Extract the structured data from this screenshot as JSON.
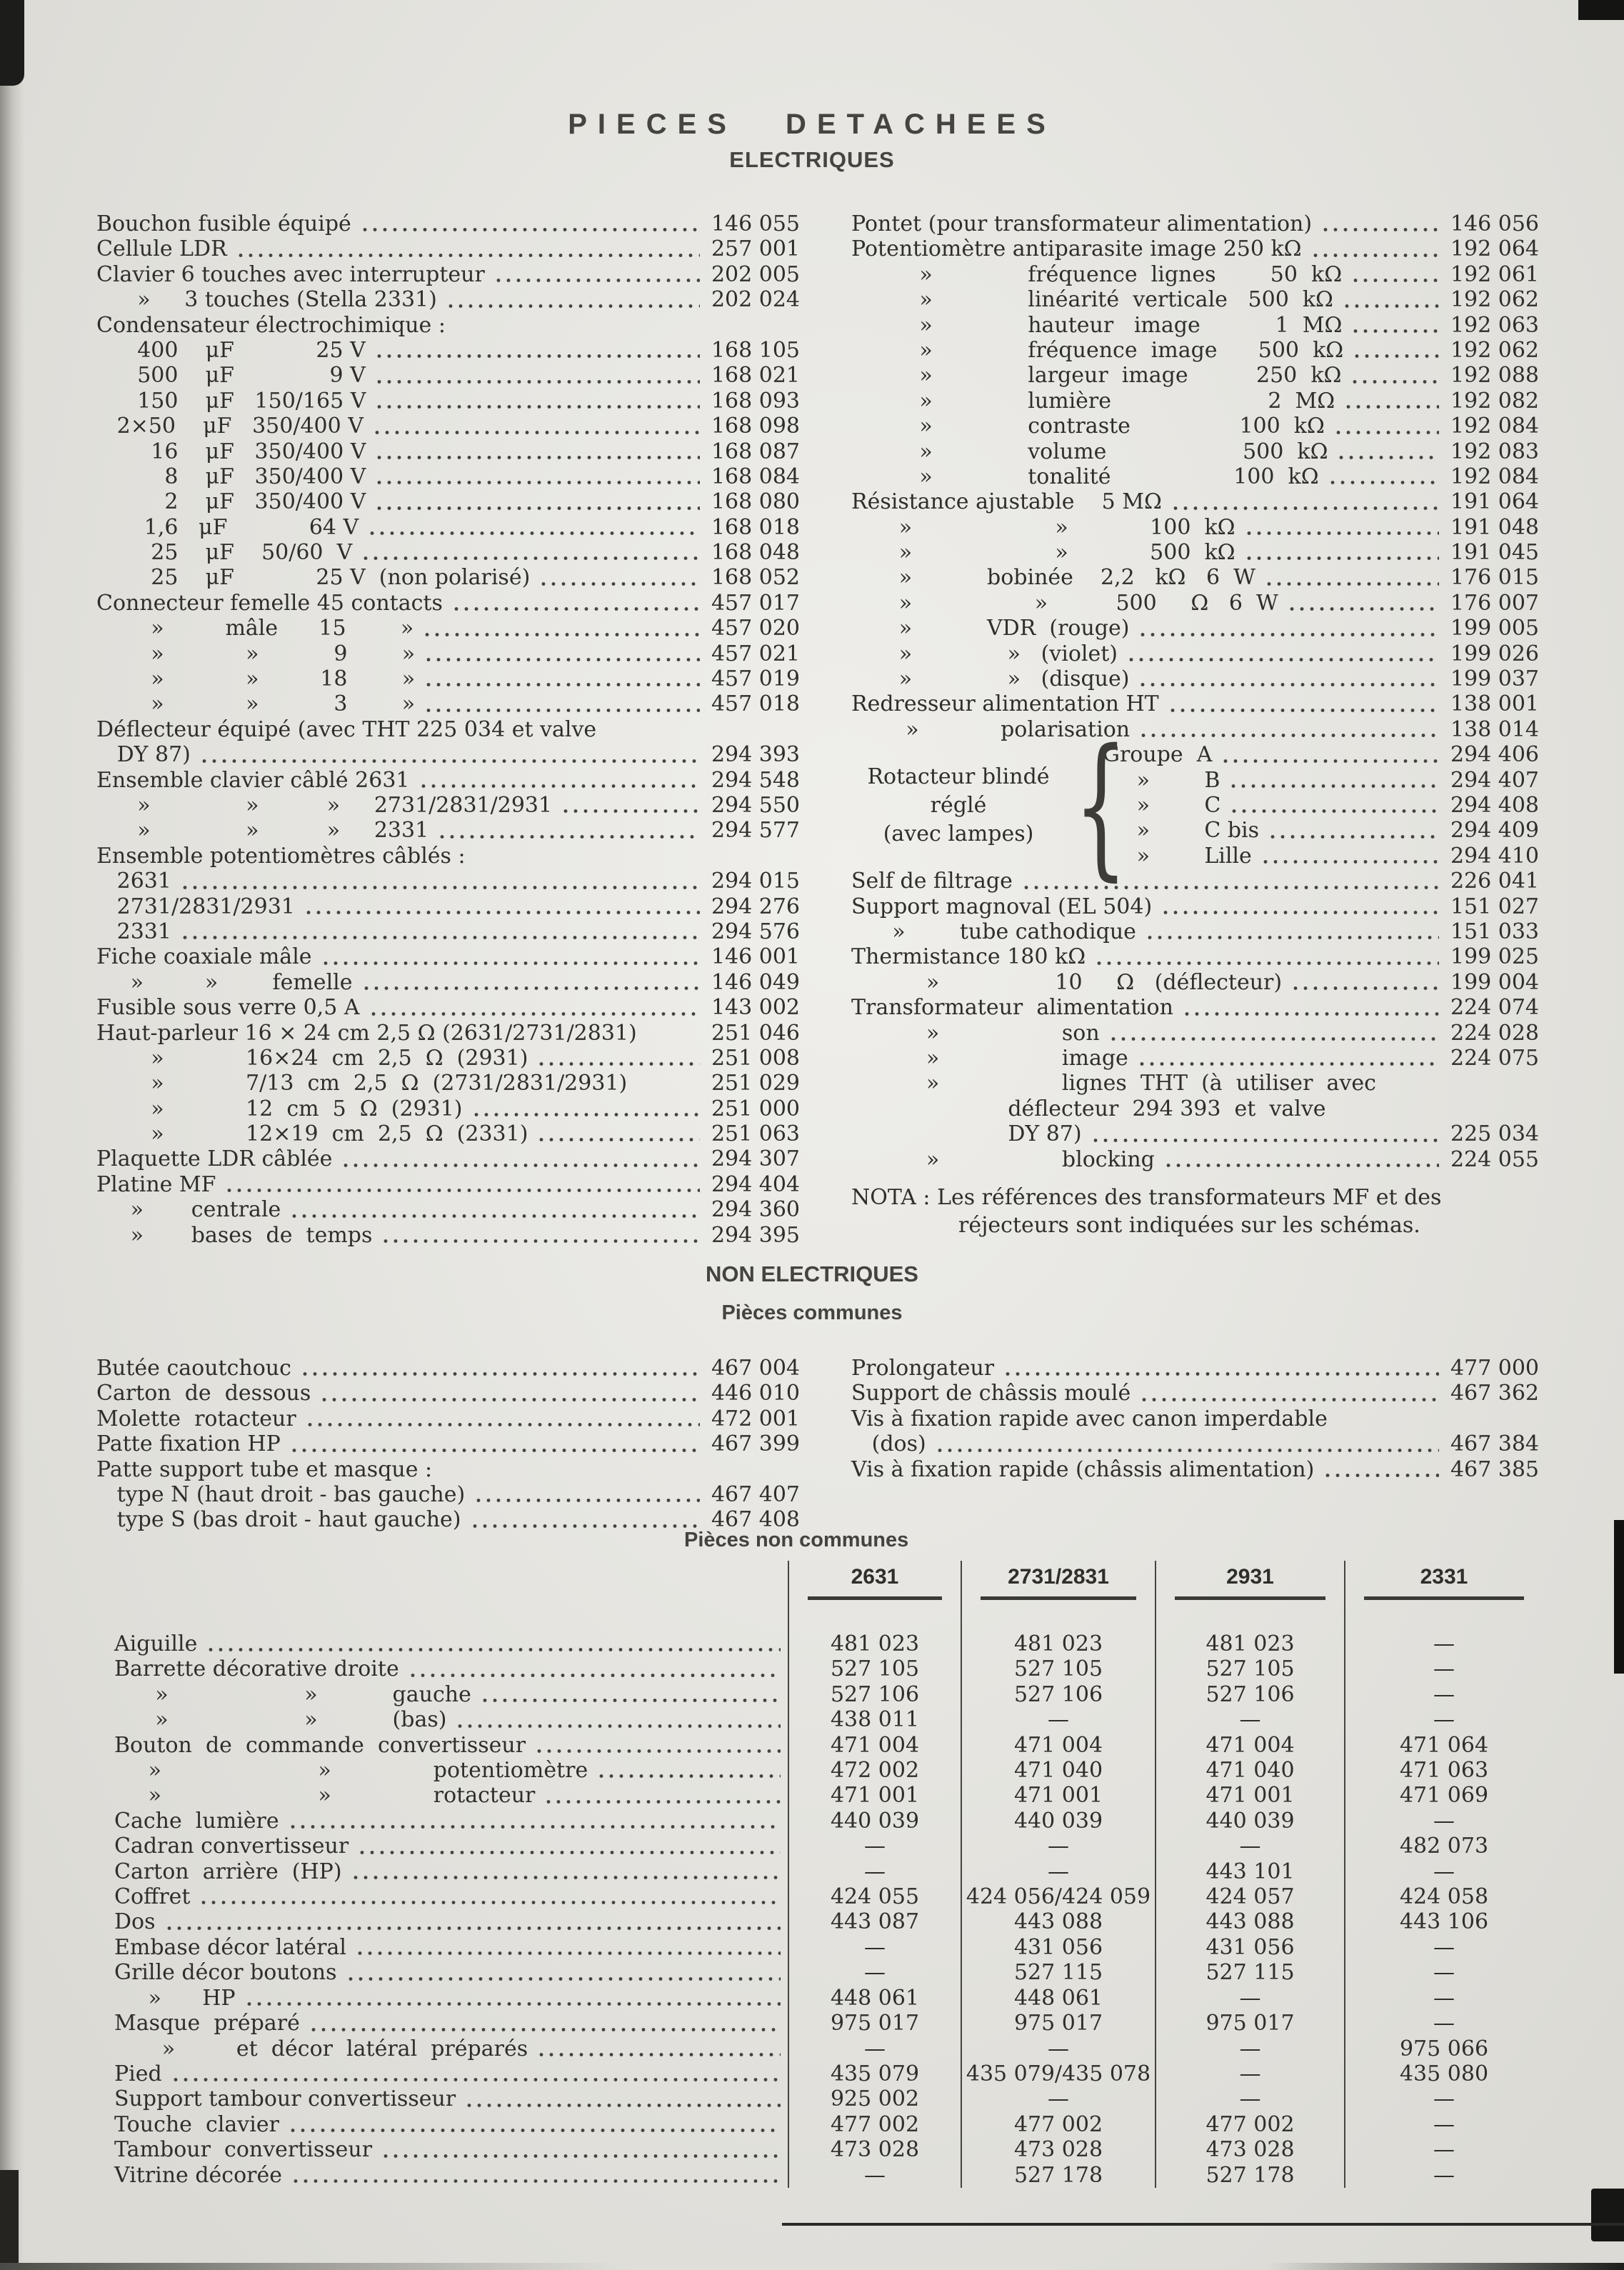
{
  "page": {
    "title": "PIECES DETACHEES",
    "subtitle": "ELECTRIQUES",
    "non_electriques_heading": "NON ELECTRIQUES",
    "pieces_communes_heading": "Pièces communes",
    "pieces_non_communes_heading": "Pièces non communes",
    "nota_label": "NOTA :",
    "nota_text": " Les références des transformateurs MF et des réjecteurs sont indiquées sur les schémas."
  },
  "electriques_left": [
    {
      "t": "Bouchon fusible équipé",
      "r": "146 055"
    },
    {
      "t": "Cellule LDR",
      "r": "257 001"
    },
    {
      "t": "Clavier 6 touches avec interrupteur",
      "r": "202 005"
    },
    {
      "t": "      »     3 touches (Stella 2331)",
      "r": "202 024"
    },
    {
      "t": "Condensateur électrochimique :",
      "nl": 1
    },
    {
      "t": "      400    μF            25 V",
      "r": "168 105"
    },
    {
      "t": "      500    μF              9 V",
      "r": "168 021"
    },
    {
      "t": "      150    μF   150/165 V",
      "r": "168 093"
    },
    {
      "t": "   2×50    μF   350/400 V",
      "r": "168 098"
    },
    {
      "t": "        16    μF   350/400 V",
      "r": "168 087"
    },
    {
      "t": "          8    μF   350/400 V",
      "r": "168 084"
    },
    {
      "t": "          2    μF   350/400 V",
      "r": "168 080"
    },
    {
      "t": "       1,6   μF            64 V",
      "r": "168 018"
    },
    {
      "t": "        25    μF    50/60  V",
      "r": "168 048"
    },
    {
      "t": "        25    μF            25 V  (non polarisé)",
      "r": "168 052"
    },
    {
      "t": "Connecteur femelle 45 contacts",
      "r": "457 017"
    },
    {
      "t": "        »         mâle      15        »",
      "r": "457 020"
    },
    {
      "t": "        »            »           9        »",
      "r": "457 021"
    },
    {
      "t": "        »            »         18        »",
      "r": "457 019"
    },
    {
      "t": "        »            »           3        »",
      "r": "457 018"
    },
    {
      "t": "Déflecteur équipé (avec THT 225 034 et valve",
      "nl": 1
    },
    {
      "t": "   DY 87)",
      "r": "294 393"
    },
    {
      "t": "Ensemble clavier câblé 2631",
      "r": "294 548"
    },
    {
      "t": "      »              »          »     2731/2831/2931",
      "r": "294 550"
    },
    {
      "t": "      »              »          »     2331",
      "r": "294 577"
    },
    {
      "t": "Ensemble potentiomètres câblés :",
      "nl": 1
    },
    {
      "t": "   2631",
      "r": "294 015"
    },
    {
      "t": "   2731/2831/2931",
      "r": "294 276"
    },
    {
      "t": "   2331",
      "r": "294 576"
    },
    {
      "t": "Fiche coaxiale mâle",
      "r": "146 001"
    },
    {
      "t": "     »         »        femelle",
      "r": "146 049"
    },
    {
      "t": "Fusible sous verre 0,5 A",
      "r": "143 002"
    },
    {
      "t": "Haut-parleur 16 × 24 cm 2,5 Ω (2631/2731/2831)",
      "r": "251 046",
      "nl": 1
    },
    {
      "t": "        »            16×24  cm  2,5  Ω  (2931)",
      "r": "251 008"
    },
    {
      "t": "        »            7/13  cm  2,5  Ω  (2731/2831/2931)",
      "r": "251 029",
      "nl": 1
    },
    {
      "t": "        »            12  cm  5  Ω  (2931)",
      "r": "251 000"
    },
    {
      "t": "        »            12×19  cm  2,5  Ω  (2331)",
      "r": "251 063"
    },
    {
      "t": "Plaquette LDR câblée",
      "r": "294 307"
    },
    {
      "t": "Platine MF",
      "r": "294 404"
    },
    {
      "t": "     »       centrale",
      "r": "294 360"
    },
    {
      "t": "     »       bases  de  temps",
      "r": "294 395"
    }
  ],
  "electriques_right_top": [
    {
      "t": "Pontet (pour transformateur alimentation)",
      "r": "146 056"
    },
    {
      "t": "Potentiomètre antiparasite image 250 kΩ",
      "r": "192 064"
    },
    {
      "t": "          »              fréquence  lignes        50  kΩ",
      "r": "192 061"
    },
    {
      "t": "          »              linéarité  verticale   500  kΩ",
      "r": "192 062"
    },
    {
      "t": "          »              hauteur   image           1  MΩ",
      "r": "192 063"
    },
    {
      "t": "          »              fréquence  image      500  kΩ",
      "r": "192 062"
    },
    {
      "t": "          »              largeur  image          250  kΩ",
      "r": "192 088"
    },
    {
      "t": "          »              lumière                       2  MΩ",
      "r": "192 082"
    },
    {
      "t": "          »              contraste                100  kΩ",
      "r": "192 084"
    },
    {
      "t": "          »              volume                    500  kΩ",
      "r": "192 083"
    },
    {
      "t": "          »              tonalité                  100  kΩ",
      "r": "192 084"
    },
    {
      "t": "Résistance ajustable    5 MΩ",
      "r": "191 064"
    },
    {
      "t": "       »                     »            100  kΩ",
      "r": "191 048"
    },
    {
      "t": "       »                     »            500  kΩ",
      "r": "191 045"
    },
    {
      "t": "       »           bobinée    2,2   kΩ   6  W",
      "r": "176 015"
    },
    {
      "t": "       »                  »          500     Ω   6  W",
      "r": "176 007"
    },
    {
      "t": "       »           VDR  (rouge)",
      "r": "199 005"
    },
    {
      "t": "       »              »   (violet)",
      "r": "199 026"
    },
    {
      "t": "       »              »   (disque)",
      "r": "199 037"
    },
    {
      "t": "Redresseur alimentation HT",
      "r": "138 001"
    },
    {
      "t": "        »            polarisation",
      "r": "138 014"
    }
  ],
  "rotacteur": {
    "left_lines": [
      "Rotacteur blindé",
      "réglé",
      "(avec lampes)"
    ],
    "brace": "{",
    "rows": [
      {
        "t": "Groupe  A",
        "r": "294 406"
      },
      {
        "t": "     »        B",
        "r": "294 407"
      },
      {
        "t": "     »        C",
        "r": "294 408"
      },
      {
        "t": "     »        C bis",
        "r": "294 409"
      },
      {
        "t": "     »        Lille",
        "r": "294 410"
      }
    ]
  },
  "electriques_right_bottom": [
    {
      "t": "Self de filtrage",
      "r": "226 041"
    },
    {
      "t": "Support magnoval (EL 504)",
      "r": "151 027"
    },
    {
      "t": "      »        tube cathodique",
      "r": "151 033"
    },
    {
      "t": "Thermistance 180 kΩ",
      "r": "199 025"
    },
    {
      "t": "           »                 10     Ω   (déflecteur)",
      "r": "199 004"
    },
    {
      "t": "Transformateur  alimentation",
      "r": "224 074"
    },
    {
      "t": "           »                  son",
      "r": "224 028"
    },
    {
      "t": "           »                  image",
      "r": "224 075"
    },
    {
      "t": "           »                  lignes  THT  (à  utiliser  avec",
      "nl": 1
    },
    {
      "t": "                       déflecteur  294 393  et  valve",
      "nl": 1
    },
    {
      "t": "                       DY 87)",
      "r": "225 034"
    },
    {
      "t": "           »                  blocking",
      "r": "224 055"
    }
  ],
  "non_electriques_left": [
    {
      "t": "Butée caoutchouc",
      "r": "467 004"
    },
    {
      "t": "Carton  de  dessous",
      "r": "446 010"
    },
    {
      "t": "Molette  rotacteur",
      "r": "472 001"
    },
    {
      "t": "Patte fixation HP",
      "r": "467 399"
    },
    {
      "t": "Patte support tube et masque :",
      "nl": 1
    },
    {
      "t": "   type N (haut droit - bas gauche)",
      "r": "467 407"
    },
    {
      "t": "   type S (bas droit - haut gauche)",
      "r": "467 408"
    }
  ],
  "non_electriques_right": [
    {
      "t": "Prolongateur",
      "r": "477 000"
    },
    {
      "t": "Support de châssis moulé",
      "r": "467 362"
    },
    {
      "t": "Vis à fixation rapide avec canon imperdable",
      "nl": 1
    },
    {
      "t": "   (dos)",
      "r": "467 384"
    },
    {
      "t": "Vis à fixation rapide (châssis alimentation)",
      "r": "467 385"
    }
  ],
  "table": {
    "columns": [
      "2631",
      "2731/2831",
      "2931",
      "2331"
    ],
    "rows": [
      {
        "label": "Aiguille",
        "values": [
          "481 023",
          "481 023",
          "481 023",
          "—"
        ]
      },
      {
        "label": "Barrette décorative droite",
        "values": [
          "527 105",
          "527 105",
          "527 105",
          "—"
        ]
      },
      {
        "label": "      »                    »           gauche",
        "values": [
          "527 106",
          "527 106",
          "527 106",
          "—"
        ]
      },
      {
        "label": "      »                    »           (bas)",
        "values": [
          "438 011",
          "—",
          "—",
          "—"
        ]
      },
      {
        "label": "Bouton  de  commande  convertisseur",
        "values": [
          "471 004",
          "471 004",
          "471 004",
          "471 064"
        ]
      },
      {
        "label": "     »                       »               potentiomètre",
        "values": [
          "472 002",
          "471 040",
          "471 040",
          "471 063"
        ]
      },
      {
        "label": "     »                       »               rotacteur",
        "values": [
          "471 001",
          "471 001",
          "471 001",
          "471 069"
        ]
      },
      {
        "label": "Cache  lumière",
        "values": [
          "440 039",
          "440 039",
          "440 039",
          "—"
        ]
      },
      {
        "label": "Cadran convertisseur",
        "values": [
          "—",
          "—",
          "—",
          "482 073"
        ]
      },
      {
        "label": "Carton  arrière  (HP)",
        "values": [
          "—",
          "—",
          "443 101",
          "—"
        ]
      },
      {
        "label": "Coffret",
        "values": [
          "424 055",
          "424 056/424 059",
          "424 057",
          "424 058"
        ]
      },
      {
        "label": "Dos",
        "values": [
          "443 087",
          "443 088",
          "443 088",
          "443 106"
        ]
      },
      {
        "label": "Embase décor latéral",
        "values": [
          "—",
          "431 056",
          "431 056",
          "—"
        ]
      },
      {
        "label": "Grille décor boutons",
        "values": [
          "—",
          "527 115",
          "527 115",
          "—"
        ]
      },
      {
        "label": "     »      HP",
        "values": [
          "448 061",
          "448 061",
          "—",
          "—"
        ]
      },
      {
        "label": "Masque  préparé",
        "values": [
          "975 017",
          "975 017",
          "975 017",
          "—"
        ]
      },
      {
        "label": "       »         et  décor  latéral  préparés",
        "values": [
          "—",
          "—",
          "—",
          "975 066"
        ]
      },
      {
        "label": "Pied",
        "values": [
          "435 079",
          "435 079/435 078",
          "—",
          "435 080"
        ]
      },
      {
        "label": "Support tambour convertisseur",
        "values": [
          "925 002",
          "—",
          "—",
          "—"
        ]
      },
      {
        "label": "Touche  clavier",
        "values": [
          "477 002",
          "477 002",
          "477 002",
          "—"
        ]
      },
      {
        "label": "Tambour  convertisseur",
        "values": [
          "473 028",
          "473 028",
          "473 028",
          "—"
        ]
      },
      {
        "label": "Vitrine décorée",
        "values": [
          "—",
          "527 178",
          "527 178",
          "—"
        ]
      }
    ]
  }
}
